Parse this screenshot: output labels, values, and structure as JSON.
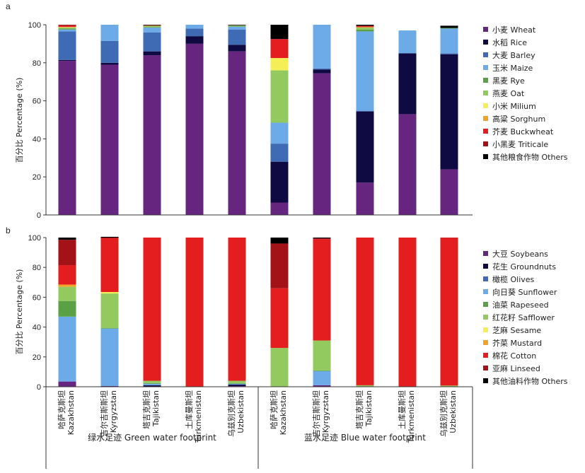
{
  "panels": {
    "a": "a",
    "b": "b"
  },
  "ylabel": "百分比 Percentage (%)",
  "groups": [
    "绿水足迹 Green water footprint",
    "蓝水足迹 Blue water footprint"
  ],
  "countries": [
    {
      "zh": "哈萨克斯坦",
      "en": "Kazakhstan"
    },
    {
      "zh": "吉尔吉斯斯坦",
      "en": "Kyrgyzstan"
    },
    {
      "zh": "塔吉克斯坦",
      "en": "Tajikistan"
    },
    {
      "zh": "土库曼斯坦",
      "en": "Turkmenistan"
    },
    {
      "zh": "乌兹别克斯坦",
      "en": "Uzbekistan"
    },
    {
      "zh": "哈萨克斯坦",
      "en": "Kazakhstan"
    },
    {
      "zh": "吉尔吉斯斯坦",
      "en": "Kyrgyzstan"
    },
    {
      "zh": "塔吉克斯坦",
      "en": "Tajikistan"
    },
    {
      "zh": "土库曼斯坦",
      "en": "Turkmenistan"
    },
    {
      "zh": "乌兹别克斯坦",
      "en": "Uzbekistan"
    }
  ],
  "chart_data": [
    {
      "type": "bar",
      "stacked": true,
      "panel": "a",
      "ylabel": "百分比 Percentage (%)",
      "ylim": [
        0,
        100
      ],
      "yticks": [
        0,
        20,
        40,
        60,
        80,
        100
      ],
      "categories": [
        "Kazakhstan",
        "Kyrgyzstan",
        "Tajikistan",
        "Turkmenistan",
        "Uzbekistan",
        "Kazakhstan",
        "Kyrgyzstan",
        "Tajikistan",
        "Turkmenistan",
        "Uzbekistan"
      ],
      "legend_position": "right",
      "series": [
        {
          "name": "小麦 Wheat",
          "color": "#66267f",
          "values": [
            81,
            79,
            84,
            90,
            86,
            6.5,
            74.5,
            17,
            53,
            24
          ]
        },
        {
          "name": "水稻 Rice",
          "color": "#0f0b42",
          "values": [
            0.5,
            1,
            2,
            4,
            3.5,
            21.5,
            2,
            37.5,
            32,
            60.5
          ]
        },
        {
          "name": "大麦 Barley",
          "color": "#3e6bb4",
          "values": [
            15,
            11.5,
            10,
            4,
            8,
            9.5,
            0.5,
            0,
            0,
            0.5
          ]
        },
        {
          "name": "玉米 Maize",
          "color": "#6daae8",
          "values": [
            1,
            8.5,
            2.5,
            2,
            1.5,
            11,
            23,
            42,
            12,
            13
          ]
        },
        {
          "name": "黑麦 Rye",
          "color": "#5aa146",
          "values": [
            0.5,
            0,
            0.3,
            0,
            0.3,
            0,
            0,
            1,
            0,
            0.3
          ]
        },
        {
          "name": "燕麦 Oat",
          "color": "#93ca5f",
          "values": [
            0.5,
            0,
            0.7,
            0,
            0.3,
            27.5,
            0,
            1,
            0,
            0
          ]
        },
        {
          "name": "小米 Milium",
          "color": "#f4ee57",
          "values": [
            0.3,
            0,
            0,
            0,
            0,
            6.5,
            0,
            0.2,
            0,
            0
          ]
        },
        {
          "name": "高粱 Sorghum",
          "color": "#f2a32a",
          "values": [
            0,
            0,
            0,
            0,
            0,
            0,
            0,
            0,
            0,
            0
          ]
        },
        {
          "name": "芥麦 Buckwheat",
          "color": "#e41d1f",
          "values": [
            0.7,
            0,
            0,
            0,
            0,
            10,
            0,
            0.5,
            0,
            0
          ]
        },
        {
          "name": "小黑麦 Triticale",
          "color": "#a31216",
          "values": [
            0.5,
            0,
            0.3,
            0,
            0.1,
            0,
            0,
            0.3,
            0,
            0
          ]
        },
        {
          "name": "其他粮食作物 Others",
          "color": "#000000",
          "values": [
            0,
            0,
            0.2,
            0,
            0.3,
            7.5,
            0,
            0.5,
            0,
            1.2
          ]
        }
      ]
    },
    {
      "type": "bar",
      "stacked": true,
      "panel": "b",
      "ylabel": "百分比 Percentage (%)",
      "ylim": [
        0,
        100
      ],
      "yticks": [
        0,
        20,
        40,
        60,
        80,
        100
      ],
      "categories": [
        "Kazakhstan",
        "Kyrgyzstan",
        "Tajikistan",
        "Turkmenistan",
        "Uzbekistan",
        "Kazakhstan",
        "Kyrgyzstan",
        "Tajikistan",
        "Turkmenistan",
        "Uzbekistan"
      ],
      "legend_position": "right",
      "series": [
        {
          "name": "大豆 Soybeans",
          "color": "#66267f",
          "values": [
            3.5,
            0.5,
            0,
            0,
            0.5,
            0,
            1,
            0,
            0,
            0
          ]
        },
        {
          "name": "花生 Groundnuts",
          "color": "#0f0b42",
          "values": [
            0,
            0,
            1,
            0,
            1,
            0,
            0,
            0,
            0,
            0
          ]
        },
        {
          "name": "橄榄 Olives",
          "color": "#3e6bb4",
          "values": [
            0,
            0,
            0,
            0,
            0,
            0,
            0,
            0,
            0,
            0
          ]
        },
        {
          "name": "向日葵 Sunflower",
          "color": "#6daae8",
          "values": [
            43.5,
            38.5,
            1,
            0,
            0.5,
            0,
            9.5,
            0,
            0,
            0
          ]
        },
        {
          "name": "油菜 Rapeseed",
          "color": "#5aa146",
          "values": [
            10.5,
            0.5,
            0.5,
            0,
            0.5,
            0,
            0.5,
            0,
            0,
            0
          ]
        },
        {
          "name": "红花籽 Safflower",
          "color": "#93ca5f",
          "values": [
            9.5,
            23,
            1.5,
            0,
            1.5,
            26,
            20,
            1,
            0,
            0.8
          ]
        },
        {
          "name": "芝麻 Sesame",
          "color": "#f4ee57",
          "values": [
            0,
            1,
            0,
            0,
            0,
            0,
            0,
            0,
            0,
            0
          ]
        },
        {
          "name": "芥菜 Mustard",
          "color": "#f2a32a",
          "values": [
            1.5,
            0,
            0,
            0,
            0,
            0,
            0,
            0,
            0,
            0
          ]
        },
        {
          "name": "棉花 Cotton",
          "color": "#e41d1f",
          "values": [
            13,
            36,
            96,
            100,
            96,
            40,
            68,
            99,
            100,
            99
          ]
        },
        {
          "name": "亚麻 Linseed",
          "color": "#a31216",
          "values": [
            17,
            0.5,
            0,
            0,
            0,
            30,
            0.5,
            0,
            0,
            0.2
          ]
        },
        {
          "name": "其他油料作物 Others",
          "color": "#000000",
          "values": [
            1.5,
            0.5,
            0,
            0,
            0,
            4,
            0.5,
            0,
            0,
            0
          ]
        }
      ]
    }
  ]
}
